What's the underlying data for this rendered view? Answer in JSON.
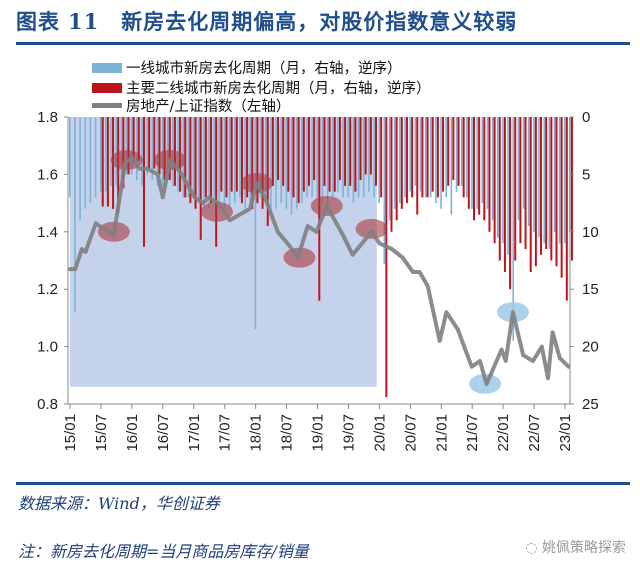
{
  "header": {
    "prefix": "图表",
    "number": "11",
    "title": "新房去化周期偏高，对股价指数意义较弱"
  },
  "footer": {
    "source": "数据来源：Wind，华创证券",
    "note": "注：新房去化周期=当月商品房库存/销量",
    "watermark": "姚佩策略探索"
  },
  "colors": {
    "tier1": "#7fb3d5",
    "tier2": "#c0141c",
    "line": "#7f7f7f",
    "shade": "#c5d2ec",
    "accent": "#1f4e8c",
    "ellipse_red": "#a8383c",
    "ellipse_blue": "#9ccae6"
  },
  "chart_data": {
    "type": "bar+line",
    "title": "新房去化周期偏高，对股价指数意义较弱",
    "x_ticks": [
      "15/01",
      "15/07",
      "16/01",
      "16/07",
      "17/01",
      "17/07",
      "18/01",
      "18/07",
      "19/01",
      "19/07",
      "20/01",
      "20/07",
      "21/01",
      "21/07",
      "22/01",
      "22/07",
      "23/01"
    ],
    "x_unit": "months since 2015/01",
    "y_left": {
      "label": "房地产/上证指数（左轴）",
      "lim": [
        0.8,
        1.8
      ],
      "ticks": [
        "0.8",
        "1.0",
        "1.2",
        "1.4",
        "1.6",
        "1.8"
      ]
    },
    "y_right": {
      "label": "月，右轴，逆序",
      "lim": [
        0,
        25
      ],
      "reversed": true,
      "ticks": [
        "0",
        "5",
        "10",
        "15",
        "20",
        "25"
      ]
    },
    "legend": [
      "一线城市新房去化周期（月，右轴，逆序）",
      "主要二线城市新房去化周期（月，右轴，逆序）",
      "房地产/上证指数（左轴）"
    ],
    "series": [
      {
        "name": "一线城市新房去化周期（月，右轴，逆序）",
        "type": "bar",
        "axis": "right",
        "start_month": 0,
        "values": [
          7,
          17,
          9,
          8,
          7.5,
          7,
          6.5,
          6.5,
          6,
          6,
          5.5,
          5,
          5,
          5.5,
          6,
          5,
          5.5,
          6,
          6,
          5.5,
          6,
          6.5,
          7,
          7,
          7,
          7.5,
          8,
          8,
          7,
          7.5,
          8,
          8,
          7.5,
          7,
          8,
          7.5,
          18.5,
          7,
          7.5,
          8,
          8,
          7.5,
          8,
          8.5,
          8,
          7.5,
          7,
          7,
          7,
          7.5,
          8,
          7,
          6.5,
          7,
          7,
          7.5,
          7,
          7,
          6.5,
          7,
          7.5,
          12.8,
          9,
          8,
          7.5,
          7,
          6.5,
          6,
          6.5,
          7,
          7,
          7.5,
          8,
          7,
          8.5,
          6.5,
          6,
          7,
          8,
          8,
          7.5,
          8,
          9,
          10.5,
          11,
          12,
          19.5,
          9,
          8,
          9.5,
          10,
          10.5,
          11,
          11.5,
          10,
          11,
          11,
          10
        ]
      },
      {
        "name": "主要二线城市新房去化周期（月，右轴，逆序）",
        "type": "bar",
        "axis": "right",
        "start_month": 6,
        "values": [
          7.8,
          7.8,
          8,
          8.4,
          6.2,
          5,
          4,
          3.8,
          11.3,
          4.5,
          4.5,
          5,
          5.5,
          5.5,
          6,
          6.5,
          7,
          7.5,
          8,
          10.7,
          7,
          7.5,
          11.3,
          6.5,
          7,
          6.5,
          6.5,
          7.5,
          7,
          8,
          7.5,
          8,
          9.5,
          6,
          5.5,
          6,
          6.5,
          7,
          7.5,
          6.5,
          6,
          5.5,
          16,
          6,
          6.5,
          6.5,
          5.5,
          6,
          6,
          6.5,
          5.5,
          5,
          5,
          6,
          7,
          24.4,
          10,
          9,
          8,
          7.5,
          7,
          8.5,
          7,
          7,
          6.5,
          7,
          6.5,
          6,
          5.5,
          6,
          7,
          8,
          9,
          8.5,
          9,
          10,
          11,
          12.5,
          13.5,
          15,
          12.5,
          11,
          11.5,
          13.5,
          13,
          12,
          11.5,
          12.5,
          13,
          14,
          16,
          12.5
        ]
      },
      {
        "name": "房地产/上证指数（左轴）",
        "type": "line",
        "axis": "left",
        "points": [
          [
            0,
            1.27
          ],
          [
            1,
            1.27
          ],
          [
            2.3,
            1.34
          ],
          [
            3,
            1.33
          ],
          [
            5,
            1.43
          ],
          [
            6.5,
            1.41
          ],
          [
            8.5,
            1.39
          ],
          [
            10.7,
            1.64
          ],
          [
            12,
            1.66
          ],
          [
            13.5,
            1.62
          ],
          [
            15,
            1.62
          ],
          [
            17,
            1.6
          ],
          [
            18,
            1.52
          ],
          [
            19.4,
            1.65
          ],
          [
            21.3,
            1.61
          ],
          [
            24.2,
            1.52
          ],
          [
            25.8,
            1.5
          ],
          [
            27,
            1.52
          ],
          [
            28.7,
            1.5
          ],
          [
            31,
            1.44
          ],
          [
            32.9,
            1.46
          ],
          [
            34.9,
            1.48
          ],
          [
            36.2,
            1.57
          ],
          [
            37.8,
            1.52
          ],
          [
            40.3,
            1.4
          ],
          [
            42.6,
            1.35
          ],
          [
            44.2,
            1.31
          ],
          [
            46.1,
            1.42
          ],
          [
            47.8,
            1.4
          ],
          [
            49.8,
            1.49
          ],
          [
            52.9,
            1.39
          ],
          [
            54.8,
            1.32
          ],
          [
            58.5,
            1.4
          ],
          [
            60,
            1.36
          ],
          [
            62.4,
            1.34
          ],
          [
            64.5,
            1.31
          ],
          [
            66.5,
            1.26
          ],
          [
            67.8,
            1.26
          ],
          [
            69.4,
            1.21
          ],
          [
            71.7,
            1.02
          ],
          [
            73,
            1.12
          ],
          [
            75.2,
            1.06
          ],
          [
            77.9,
            0.93
          ],
          [
            79.5,
            0.95
          ],
          [
            80.8,
            0.87
          ],
          [
            83.7,
            0.99
          ],
          [
            84.5,
            0.95
          ],
          [
            85.9,
            1.12
          ],
          [
            87.9,
            0.97
          ],
          [
            89.8,
            0.95
          ],
          [
            91.5,
            1.0
          ],
          [
            92.7,
            0.89
          ],
          [
            93.6,
            1.05
          ],
          [
            95,
            0.96
          ],
          [
            96.7,
            0.93
          ]
        ]
      }
    ],
    "annotations": {
      "shaded_period_months": [
        0,
        59.5
      ],
      "red_ellipses": [
        [
          8.5,
          1.4
        ],
        [
          11,
          1.65
        ],
        [
          19.4,
          1.65
        ],
        [
          28.5,
          1.47
        ],
        [
          36.2,
          1.57
        ],
        [
          44.5,
          1.31
        ],
        [
          49.8,
          1.49
        ],
        [
          58.5,
          1.41
        ]
      ],
      "blue_ellipses": [
        [
          80.5,
          0.87
        ],
        [
          85.9,
          1.12
        ]
      ]
    }
  }
}
